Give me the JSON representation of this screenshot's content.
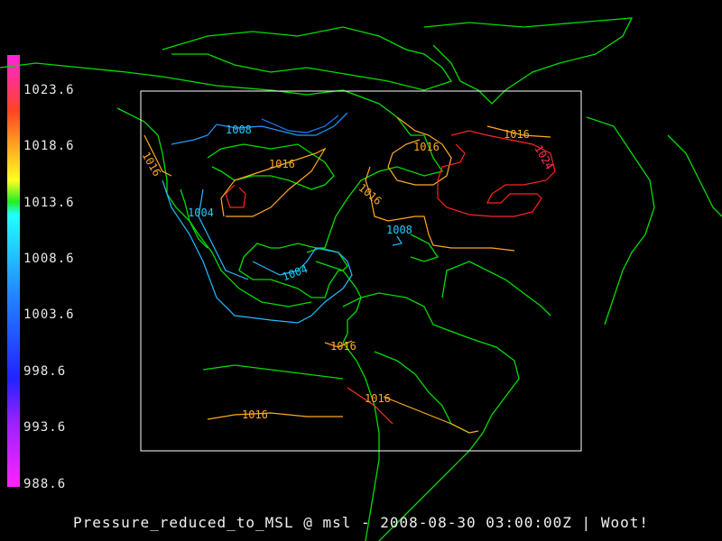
{
  "caption": "Pressure_reduced_to_MSL @ msl - 2008-08-30 03:00:00Z | Woot!",
  "colorbar": {
    "labels": [
      "1023.6",
      "1018.6",
      "1013.6",
      "1008.6",
      "1003.6",
      "998.6",
      "993.6",
      "988.6"
    ],
    "range": [
      988.6,
      1026.1
    ],
    "colors": {
      "bottom": "#ff22ff",
      "violet": "#9922ff",
      "blue": "#2222ff",
      "cyan": "#22ffff",
      "green": "#22ee22",
      "yellow": "#ffff22",
      "orange": "#ff9922",
      "red": "#ff3333",
      "top": "#ff22dd"
    }
  },
  "map": {
    "coastline_color": "#00dd00",
    "box_color": "#ffffff",
    "contour_labels": {
      "l1008_nw": "1008",
      "l1016_pnw": "1016",
      "l1016_plains": "1016",
      "l1016_canada": "1016",
      "l1016_east": "1016",
      "l1016_atl": "1016",
      "l1024_atl": "1024",
      "l1004_west": "1004",
      "l1008_atl": "1008",
      "l1004_mex": "1004",
      "l1016_sa": "1016",
      "l1016_pac": "1016",
      "l1016_andes": "1016"
    }
  }
}
